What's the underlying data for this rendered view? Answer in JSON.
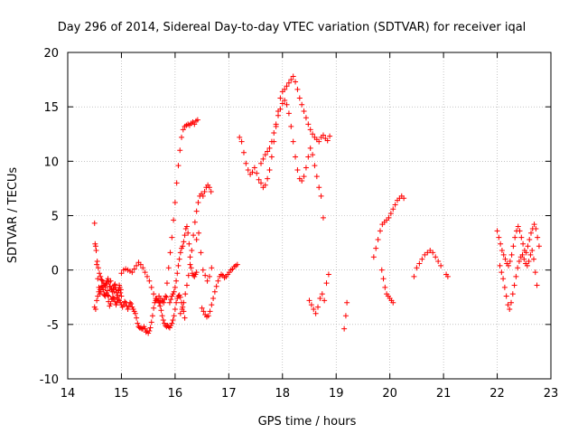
{
  "chart_data": {
    "type": "scatter",
    "title": "Day 296 of 2014, Sidereal Day-to-day VTEC variation (SDTVAR) for receiver iqal",
    "xlabel": "GPS time / hours",
    "ylabel": "SDTVAR / TECUs",
    "xlim": [
      14,
      23
    ],
    "ylim": [
      -10,
      20
    ],
    "xticks": [
      "14",
      "15",
      "16",
      "17",
      "18",
      "19",
      "20",
      "21",
      "22",
      "23"
    ],
    "yticks": [
      "-10",
      "-5",
      "0",
      "5",
      "10",
      "15",
      "20"
    ],
    "grid": true,
    "marker": "plus",
    "color": "#ff0000",
    "series": [
      {
        "name": "SDTVAR",
        "x": [
          14.5,
          14.52,
          14.54,
          14.56,
          14.58,
          14.6,
          14.62,
          14.64,
          14.66,
          14.68,
          14.7,
          14.72,
          14.74,
          14.76,
          14.78,
          14.8,
          14.82,
          14.84,
          14.86,
          14.88,
          14.9,
          14.92,
          14.94,
          14.96,
          14.98,
          15.0,
          14.5,
          14.52,
          14.54,
          14.56,
          14.58,
          14.6,
          14.62,
          14.64,
          14.66,
          14.68,
          14.7,
          14.72,
          14.74,
          14.76,
          14.78,
          14.8,
          14.82,
          14.84,
          14.86,
          14.88,
          14.9,
          14.92,
          14.94,
          14.96,
          14.98,
          15.0,
          15.02,
          15.04,
          15.06,
          15.08,
          15.1,
          15.12,
          15.14,
          15.16,
          15.18,
          15.2,
          15.22,
          15.24,
          15.26,
          15.28,
          15.3,
          15.32,
          15.34,
          15.36,
          15.38,
          15.4,
          15.42,
          15.44,
          15.46,
          15.48,
          15.5,
          15.52,
          15.54,
          15.56,
          15.58,
          15.6,
          15.62,
          15.64,
          15.66,
          15.68,
          15.7,
          15.72,
          15.74,
          15.76,
          15.78,
          15.8,
          15.82,
          15.84,
          15.86,
          15.88,
          15.9,
          15.92,
          15.94,
          15.96,
          15.98,
          16.0,
          16.02,
          16.04,
          16.06,
          16.08,
          16.1,
          16.12,
          16.14,
          16.16,
          16.18,
          14.51,
          14.53,
          14.55,
          14.57,
          14.59,
          14.61,
          14.63,
          14.65,
          14.67,
          14.69,
          14.71,
          14.73,
          14.75,
          14.77,
          14.79,
          14.81,
          14.83,
          14.85,
          14.87,
          14.89,
          14.91,
          14.93,
          14.95,
          14.97,
          14.99,
          15.0,
          15.04,
          15.08,
          15.12,
          15.16,
          15.2,
          15.24,
          15.28,
          15.32,
          15.36,
          15.4,
          15.44,
          15.48,
          15.52,
          15.56,
          15.6,
          15.64,
          15.68,
          15.72,
          15.76,
          15.8,
          15.84,
          15.7,
          15.73,
          15.76,
          15.79,
          15.82,
          15.85,
          15.88,
          15.91,
          15.94,
          15.97,
          16.0,
          16.03,
          16.06,
          16.09,
          16.12,
          16.15,
          16.18,
          16.21,
          16.24,
          16.27,
          16.3,
          16.33,
          16.36,
          16.39,
          16.42,
          15.9,
          15.92,
          15.94,
          15.96,
          15.98,
          16.0,
          16.02,
          16.04,
          16.06,
          16.08,
          16.1,
          16.12,
          16.14,
          16.16,
          16.18,
          16.2,
          16.22,
          16.24,
          16.26,
          16.28,
          16.3,
          16.32,
          16.34,
          16.36,
          16.38,
          16.4,
          16.1,
          16.13,
          16.16,
          16.19,
          16.22,
          16.25,
          16.28,
          16.31,
          16.34,
          16.37,
          16.4,
          16.43,
          16.46,
          16.49,
          16.52,
          16.55,
          16.58,
          16.61,
          16.64,
          16.67,
          16.5,
          16.53,
          16.56,
          16.59,
          16.62,
          16.65,
          16.68,
          16.71,
          16.74,
          16.77,
          16.8,
          16.83,
          16.86,
          16.89,
          16.92,
          16.95,
          16.98,
          17.01,
          17.04,
          17.07,
          17.1,
          17.13,
          17.16,
          16.4,
          16.44,
          16.48,
          16.52,
          16.56,
          16.6,
          16.64,
          16.68,
          17.2,
          17.24,
          17.28,
          17.32,
          17.36,
          17.4,
          17.44,
          17.48,
          17.52,
          17.56,
          17.6,
          17.64,
          17.68,
          17.72,
          17.76,
          17.8,
          17.84,
          17.88,
          17.92,
          17.96,
          18.0,
          18.04,
          18.08,
          18.12,
          18.16,
          18.2,
          18.24,
          18.28,
          18.32,
          18.36,
          18.4,
          18.44,
          18.48,
          18.52,
          18.56,
          18.6,
          18.64,
          18.68,
          18.72,
          18.76,
          18.8,
          18.84,
          18.88,
          17.6,
          17.64,
          17.68,
          17.72,
          17.76,
          17.8,
          17.84,
          17.88,
          17.92,
          17.96,
          18.0,
          18.04,
          18.08,
          18.12,
          18.16,
          18.2,
          18.24,
          18.28,
          18.32,
          18.36,
          18.4,
          18.44,
          18.48,
          18.52,
          18.56,
          18.6,
          18.64,
          18.68,
          18.72,
          18.76,
          18.5,
          18.54,
          18.58,
          18.62,
          18.66,
          18.7,
          18.74,
          18.78,
          18.82,
          18.86,
          19.15,
          19.18,
          19.2,
          19.7,
          19.74,
          19.78,
          19.82,
          19.86,
          19.9,
          19.94,
          19.98,
          20.02,
          20.06,
          20.1,
          20.14,
          20.18,
          20.22,
          20.26,
          19.85,
          19.88,
          19.91,
          19.94,
          19.97,
          20.0,
          20.03,
          20.06,
          20.45,
          20.5,
          20.55,
          20.6,
          20.65,
          20.7,
          20.75,
          20.8,
          20.85,
          20.9,
          20.95,
          21.05,
          21.08,
          22.0,
          22.03,
          22.06,
          22.09,
          22.12,
          22.15,
          22.18,
          22.21,
          22.24,
          22.27,
          22.3,
          22.33,
          22.36,
          22.39,
          22.42,
          22.45,
          22.48,
          22.51,
          22.54,
          22.57,
          22.6,
          22.63,
          22.66,
          22.69,
          22.72,
          22.75,
          22.78,
          22.05,
          22.08,
          22.11,
          22.14,
          22.17,
          22.2,
          22.23,
          22.26,
          22.29,
          22.32,
          22.35,
          22.38,
          22.41,
          22.44,
          22.47,
          22.5,
          22.53,
          22.56,
          22.59,
          22.62,
          22.65,
          22.68,
          22.71,
          22.74
        ],
        "y": [
          4.3,
          2.2,
          0.5,
          -0.8,
          -1.6,
          -2.2,
          -2.0,
          -1.5,
          -1.8,
          -2.3,
          -1.6,
          -1.2,
          -1.9,
          -2.4,
          -1.5,
          -1.0,
          -1.7,
          -2.6,
          -2.0,
          -1.3,
          -1.8,
          -2.5,
          -1.9,
          -1.4,
          -2.1,
          -2.4,
          -3.4,
          -3.6,
          -2.8,
          -2.4,
          -2.0,
          -1.8,
          -1.6,
          -1.5,
          -1.8,
          -2.2,
          -2.4,
          -2.1,
          -2.3,
          -2.9,
          -3.3,
          -3.1,
          -2.7,
          -2.5,
          -2.6,
          -2.9,
          -3.2,
          -3.0,
          -2.7,
          -2.8,
          -3.0,
          -3.2,
          -3.4,
          -3.2,
          -2.9,
          -3.0,
          -3.3,
          -3.6,
          -3.3,
          -3.0,
          -3.1,
          -3.4,
          -3.6,
          -3.8,
          -4.0,
          -4.4,
          -4.9,
          -5.2,
          -5.3,
          -5.3,
          -5.4,
          -5.4,
          -5.2,
          -5.4,
          -5.7,
          -5.6,
          -5.8,
          -5.6,
          -5.3,
          -4.8,
          -4.2,
          -3.5,
          -3.0,
          -2.8,
          -2.7,
          -2.8,
          -3.0,
          -3.3,
          -3.7,
          -4.2,
          -4.6,
          -4.9,
          -5.1,
          -5.2,
          -5.1,
          -5.2,
          -5.3,
          -5.1,
          -4.9,
          -4.6,
          -4.2,
          -3.6,
          -3.0,
          -2.6,
          -2.4,
          -2.3,
          -2.5,
          -3.0,
          -3.4,
          -3.8,
          -4.4,
          2.4,
          1.8,
          0.8,
          0.2,
          -0.3,
          -0.6,
          -0.9,
          -1.0,
          -1.2,
          -1.4,
          -1.3,
          -1.0,
          -0.8,
          -1.1,
          -1.5,
          -1.8,
          -2.0,
          -1.7,
          -1.4,
          -1.6,
          -2.1,
          -2.3,
          -1.9,
          -1.6,
          -1.8,
          -0.3,
          0.0,
          0.1,
          0.0,
          -0.1,
          -0.2,
          0.1,
          0.4,
          0.7,
          0.5,
          0.2,
          -0.2,
          -0.6,
          -1.0,
          -1.6,
          -2.2,
          -2.6,
          -2.8,
          -3.0,
          -2.9,
          -2.7,
          -2.5,
          -2.4,
          -2.6,
          -2.8,
          -3.0,
          -2.4,
          -1.2,
          0.2,
          1.6,
          3.0,
          4.6,
          6.2,
          8.0,
          9.6,
          11.0,
          12.2,
          12.9,
          13.2,
          13.3,
          13.4,
          13.3,
          13.5,
          13.6,
          13.4,
          13.7,
          13.8,
          -3.0,
          -2.7,
          -2.4,
          -2.2,
          -2.0,
          -1.6,
          -1.0,
          -0.3,
          0.4,
          1.0,
          1.6,
          2.0,
          2.2,
          2.6,
          3.2,
          3.8,
          4.0,
          3.4,
          2.4,
          1.2,
          0.2,
          -0.3,
          -0.5,
          -0.6,
          -0.4,
          -0.2,
          -4.0,
          -3.6,
          -3.0,
          -2.2,
          -1.4,
          -0.5,
          0.5,
          1.8,
          3.2,
          4.4,
          5.4,
          6.2,
          6.8,
          7.0,
          6.8,
          7.2,
          7.6,
          7.8,
          7.6,
          7.2,
          -3.5,
          -3.8,
          -4.1,
          -4.3,
          -4.2,
          -3.8,
          -3.2,
          -2.6,
          -2.0,
          -1.5,
          -1.0,
          -0.6,
          -0.4,
          -0.5,
          -0.7,
          -0.6,
          -0.4,
          -0.2,
          0.0,
          0.1,
          0.3,
          0.4,
          0.5,
          2.8,
          3.4,
          1.6,
          0.0,
          -0.5,
          -1.0,
          -0.6,
          0.2,
          12.2,
          11.8,
          10.8,
          9.8,
          9.2,
          8.8,
          9.0,
          9.4,
          8.9,
          8.3,
          8.0,
          7.6,
          7.8,
          8.4,
          9.2,
          10.4,
          11.8,
          13.2,
          14.6,
          15.8,
          16.4,
          16.6,
          16.9,
          17.2,
          17.5,
          17.8,
          17.3,
          16.6,
          15.8,
          15.2,
          14.6,
          14.0,
          13.4,
          12.9,
          12.5,
          12.2,
          12.0,
          11.8,
          12.2,
          12.4,
          12.1,
          11.9,
          12.3,
          9.8,
          10.2,
          10.6,
          10.9,
          11.2,
          11.8,
          12.6,
          13.4,
          14.2,
          14.8,
          15.3,
          15.6,
          15.2,
          14.4,
          13.2,
          11.8,
          10.4,
          9.2,
          8.4,
          8.2,
          8.6,
          9.4,
          10.4,
          11.2,
          10.6,
          9.6,
          8.6,
          7.6,
          6.8,
          4.8,
          -2.8,
          -3.2,
          -3.6,
          -4.0,
          -3.4,
          -2.6,
          -2.2,
          -2.8,
          -1.2,
          -0.4,
          -5.4,
          -4.2,
          -3.0,
          1.2,
          2.0,
          2.8,
          3.6,
          4.2,
          4.4,
          4.6,
          4.8,
          5.2,
          5.6,
          6.0,
          6.4,
          6.6,
          6.8,
          6.6,
          0.0,
          -0.8,
          -1.6,
          -2.2,
          -2.4,
          -2.6,
          -2.8,
          -3.0,
          -0.6,
          0.2,
          0.6,
          1.0,
          1.4,
          1.6,
          1.8,
          1.6,
          1.2,
          0.8,
          0.4,
          -0.4,
          -0.6,
          3.6,
          3.0,
          2.4,
          1.8,
          1.4,
          1.0,
          0.6,
          0.4,
          0.8,
          1.4,
          2.2,
          3.0,
          3.6,
          4.0,
          3.6,
          3.0,
          2.4,
          1.8,
          1.6,
          2.2,
          2.8,
          3.4,
          3.8,
          4.2,
          3.8,
          3.0,
          2.2,
          0.4,
          -0.2,
          -0.8,
          -1.6,
          -2.4,
          -3.2,
          -3.6,
          -3.0,
          -2.2,
          -1.4,
          -0.6,
          0.2,
          0.8,
          1.2,
          1.4,
          1.0,
          0.6,
          0.4,
          0.8,
          1.4,
          1.8,
          1.0,
          -0.2,
          -1.4
        ]
      }
    ]
  }
}
